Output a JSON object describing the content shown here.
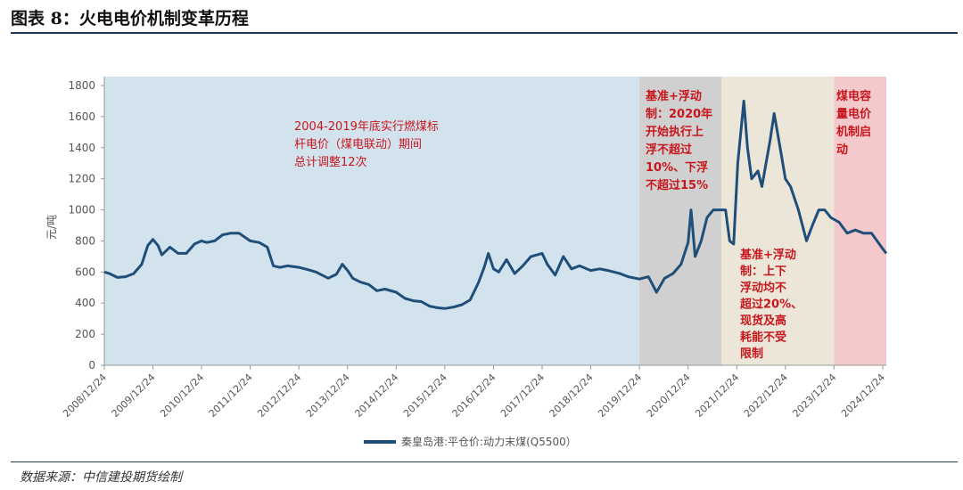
{
  "figure": {
    "title": "图表 8：火电电价机制变革历程",
    "source": "数据来源：中信建投期货绘制"
  },
  "chart_data": {
    "type": "line",
    "ylabel": "元/吨",
    "ylim": [
      0,
      1800
    ],
    "yticks": [
      "0",
      "200",
      "400",
      "600",
      "800",
      "1000",
      "1200",
      "1400",
      "1600",
      "1800"
    ],
    "xticks": [
      "2008/12/24",
      "2009/12/24",
      "2010/12/24",
      "2011/12/24",
      "2012/12/24",
      "2013/12/24",
      "2014/12/24",
      "2015/12/24",
      "2016/12/24",
      "2017/12/24",
      "2018/12/24",
      "2019/12/24",
      "2020/12/24",
      "2021/12/24",
      "2022/12/24",
      "2023/12/24",
      "2024/12/24"
    ],
    "legend": {
      "position": "bottom",
      "label": "秦皇岛港:平仓价:动力末煤(Q5500）"
    },
    "colors": {
      "line": "#1f4e79",
      "phase1": "#d3e3ee",
      "phase2": "#d0d0d0",
      "phase3": "#ebe6d8",
      "phase4": "#f4c9cc",
      "annotation": "#c8161d"
    },
    "phases": [
      {
        "start": "2008-12-24",
        "end": "2019-12-24",
        "label_lines": [
          "2004-2019年底实行燃煤标",
          "杆电价（煤电联动）期间",
          "总计调整12次"
        ]
      },
      {
        "start": "2019-12-24",
        "end": "2021-09-01",
        "label_lines": [
          "基准+浮动",
          "制：2020年",
          "开始执行上",
          "浮不超过",
          "10%、下浮",
          "不超过15%"
        ]
      },
      {
        "start": "2021-09-01",
        "end": "2023-12-24",
        "label_lines": [
          "基准+浮动",
          "制：上下",
          "浮动均不",
          "超过20%、",
          "现货及高",
          "耗能不受",
          "限制"
        ]
      },
      {
        "start": "2023-12-24",
        "end": "2025-01-20",
        "label_lines": [
          "煤电容",
          "量电价",
          "机制启",
          "动"
        ]
      }
    ],
    "series": [
      {
        "name": "秦皇岛港:平仓价:动力末煤(Q5500）",
        "points": [
          [
            "2008-12-24",
            600
          ],
          [
            "2009-02-01",
            590
          ],
          [
            "2009-04-01",
            565
          ],
          [
            "2009-06-01",
            570
          ],
          [
            "2009-08-01",
            590
          ],
          [
            "2009-10-01",
            650
          ],
          [
            "2009-11-15",
            770
          ],
          [
            "2009-12-24",
            810
          ],
          [
            "2010-02-01",
            770
          ],
          [
            "2010-03-01",
            710
          ],
          [
            "2010-05-01",
            760
          ],
          [
            "2010-07-01",
            720
          ],
          [
            "2010-09-01",
            720
          ],
          [
            "2010-11-01",
            780
          ],
          [
            "2010-12-24",
            800
          ],
          [
            "2011-02-01",
            790
          ],
          [
            "2011-04-01",
            800
          ],
          [
            "2011-06-01",
            840
          ],
          [
            "2011-08-01",
            850
          ],
          [
            "2011-10-01",
            850
          ],
          [
            "2011-12-24",
            800
          ],
          [
            "2012-03-01",
            790
          ],
          [
            "2012-05-01",
            760
          ],
          [
            "2012-06-15",
            640
          ],
          [
            "2012-08-01",
            630
          ],
          [
            "2012-10-01",
            640
          ],
          [
            "2012-12-24",
            630
          ],
          [
            "2013-03-01",
            615
          ],
          [
            "2013-05-01",
            600
          ],
          [
            "2013-08-01",
            560
          ],
          [
            "2013-10-01",
            585
          ],
          [
            "2013-11-15",
            650
          ],
          [
            "2013-12-24",
            610
          ],
          [
            "2014-02-01",
            560
          ],
          [
            "2014-04-01",
            535
          ],
          [
            "2014-06-01",
            520
          ],
          [
            "2014-08-01",
            480
          ],
          [
            "2014-10-01",
            490
          ],
          [
            "2014-12-24",
            470
          ],
          [
            "2015-03-01",
            430
          ],
          [
            "2015-05-01",
            415
          ],
          [
            "2015-07-01",
            410
          ],
          [
            "2015-09-01",
            380
          ],
          [
            "2015-11-01",
            370
          ],
          [
            "2015-12-24",
            365
          ],
          [
            "2016-03-01",
            375
          ],
          [
            "2016-05-01",
            390
          ],
          [
            "2016-07-01",
            420
          ],
          [
            "2016-09-01",
            530
          ],
          [
            "2016-10-15",
            630
          ],
          [
            "2016-11-15",
            720
          ],
          [
            "2016-12-24",
            620
          ],
          [
            "2017-02-01",
            600
          ],
          [
            "2017-04-01",
            680
          ],
          [
            "2017-06-01",
            590
          ],
          [
            "2017-08-01",
            640
          ],
          [
            "2017-10-01",
            700
          ],
          [
            "2017-12-24",
            720
          ],
          [
            "2018-02-01",
            650
          ],
          [
            "2018-04-01",
            580
          ],
          [
            "2018-06-01",
            700
          ],
          [
            "2018-08-01",
            620
          ],
          [
            "2018-10-01",
            640
          ],
          [
            "2018-12-24",
            610
          ],
          [
            "2019-03-01",
            620
          ],
          [
            "2019-05-01",
            610
          ],
          [
            "2019-08-01",
            590
          ],
          [
            "2019-10-01",
            570
          ],
          [
            "2019-12-24",
            555
          ],
          [
            "2020-03-01",
            570
          ],
          [
            "2020-05-01",
            470
          ],
          [
            "2020-07-01",
            560
          ],
          [
            "2020-09-01",
            590
          ],
          [
            "2020-11-01",
            650
          ],
          [
            "2020-12-24",
            790
          ],
          [
            "2021-01-15",
            1000
          ],
          [
            "2021-02-15",
            700
          ],
          [
            "2021-04-01",
            800
          ],
          [
            "2021-05-15",
            950
          ],
          [
            "2021-07-01",
            1000
          ],
          [
            "2021-09-01",
            1000
          ],
          [
            "2021-10-01",
            1000
          ],
          [
            "2021-11-01",
            800
          ],
          [
            "2021-12-01",
            780
          ],
          [
            "2022-01-01",
            1300
          ],
          [
            "2022-02-15",
            1700
          ],
          [
            "2022-03-15",
            1400
          ],
          [
            "2022-04-15",
            1200
          ],
          [
            "2022-06-01",
            1250
          ],
          [
            "2022-07-01",
            1150
          ],
          [
            "2022-08-01",
            1300
          ],
          [
            "2022-09-01",
            1450
          ],
          [
            "2022-10-01",
            1620
          ],
          [
            "2022-11-15",
            1400
          ],
          [
            "2022-12-24",
            1200
          ],
          [
            "2023-02-01",
            1150
          ],
          [
            "2023-04-01",
            1000
          ],
          [
            "2023-06-01",
            800
          ],
          [
            "2023-07-15",
            900
          ],
          [
            "2023-09-01",
            1000
          ],
          [
            "2023-10-15",
            1000
          ],
          [
            "2023-12-01",
            950
          ],
          [
            "2024-02-01",
            920
          ],
          [
            "2024-04-01",
            850
          ],
          [
            "2024-06-01",
            870
          ],
          [
            "2024-08-01",
            850
          ],
          [
            "2024-10-01",
            850
          ],
          [
            "2024-12-24",
            750
          ],
          [
            "2025-01-20",
            720
          ]
        ]
      }
    ]
  }
}
